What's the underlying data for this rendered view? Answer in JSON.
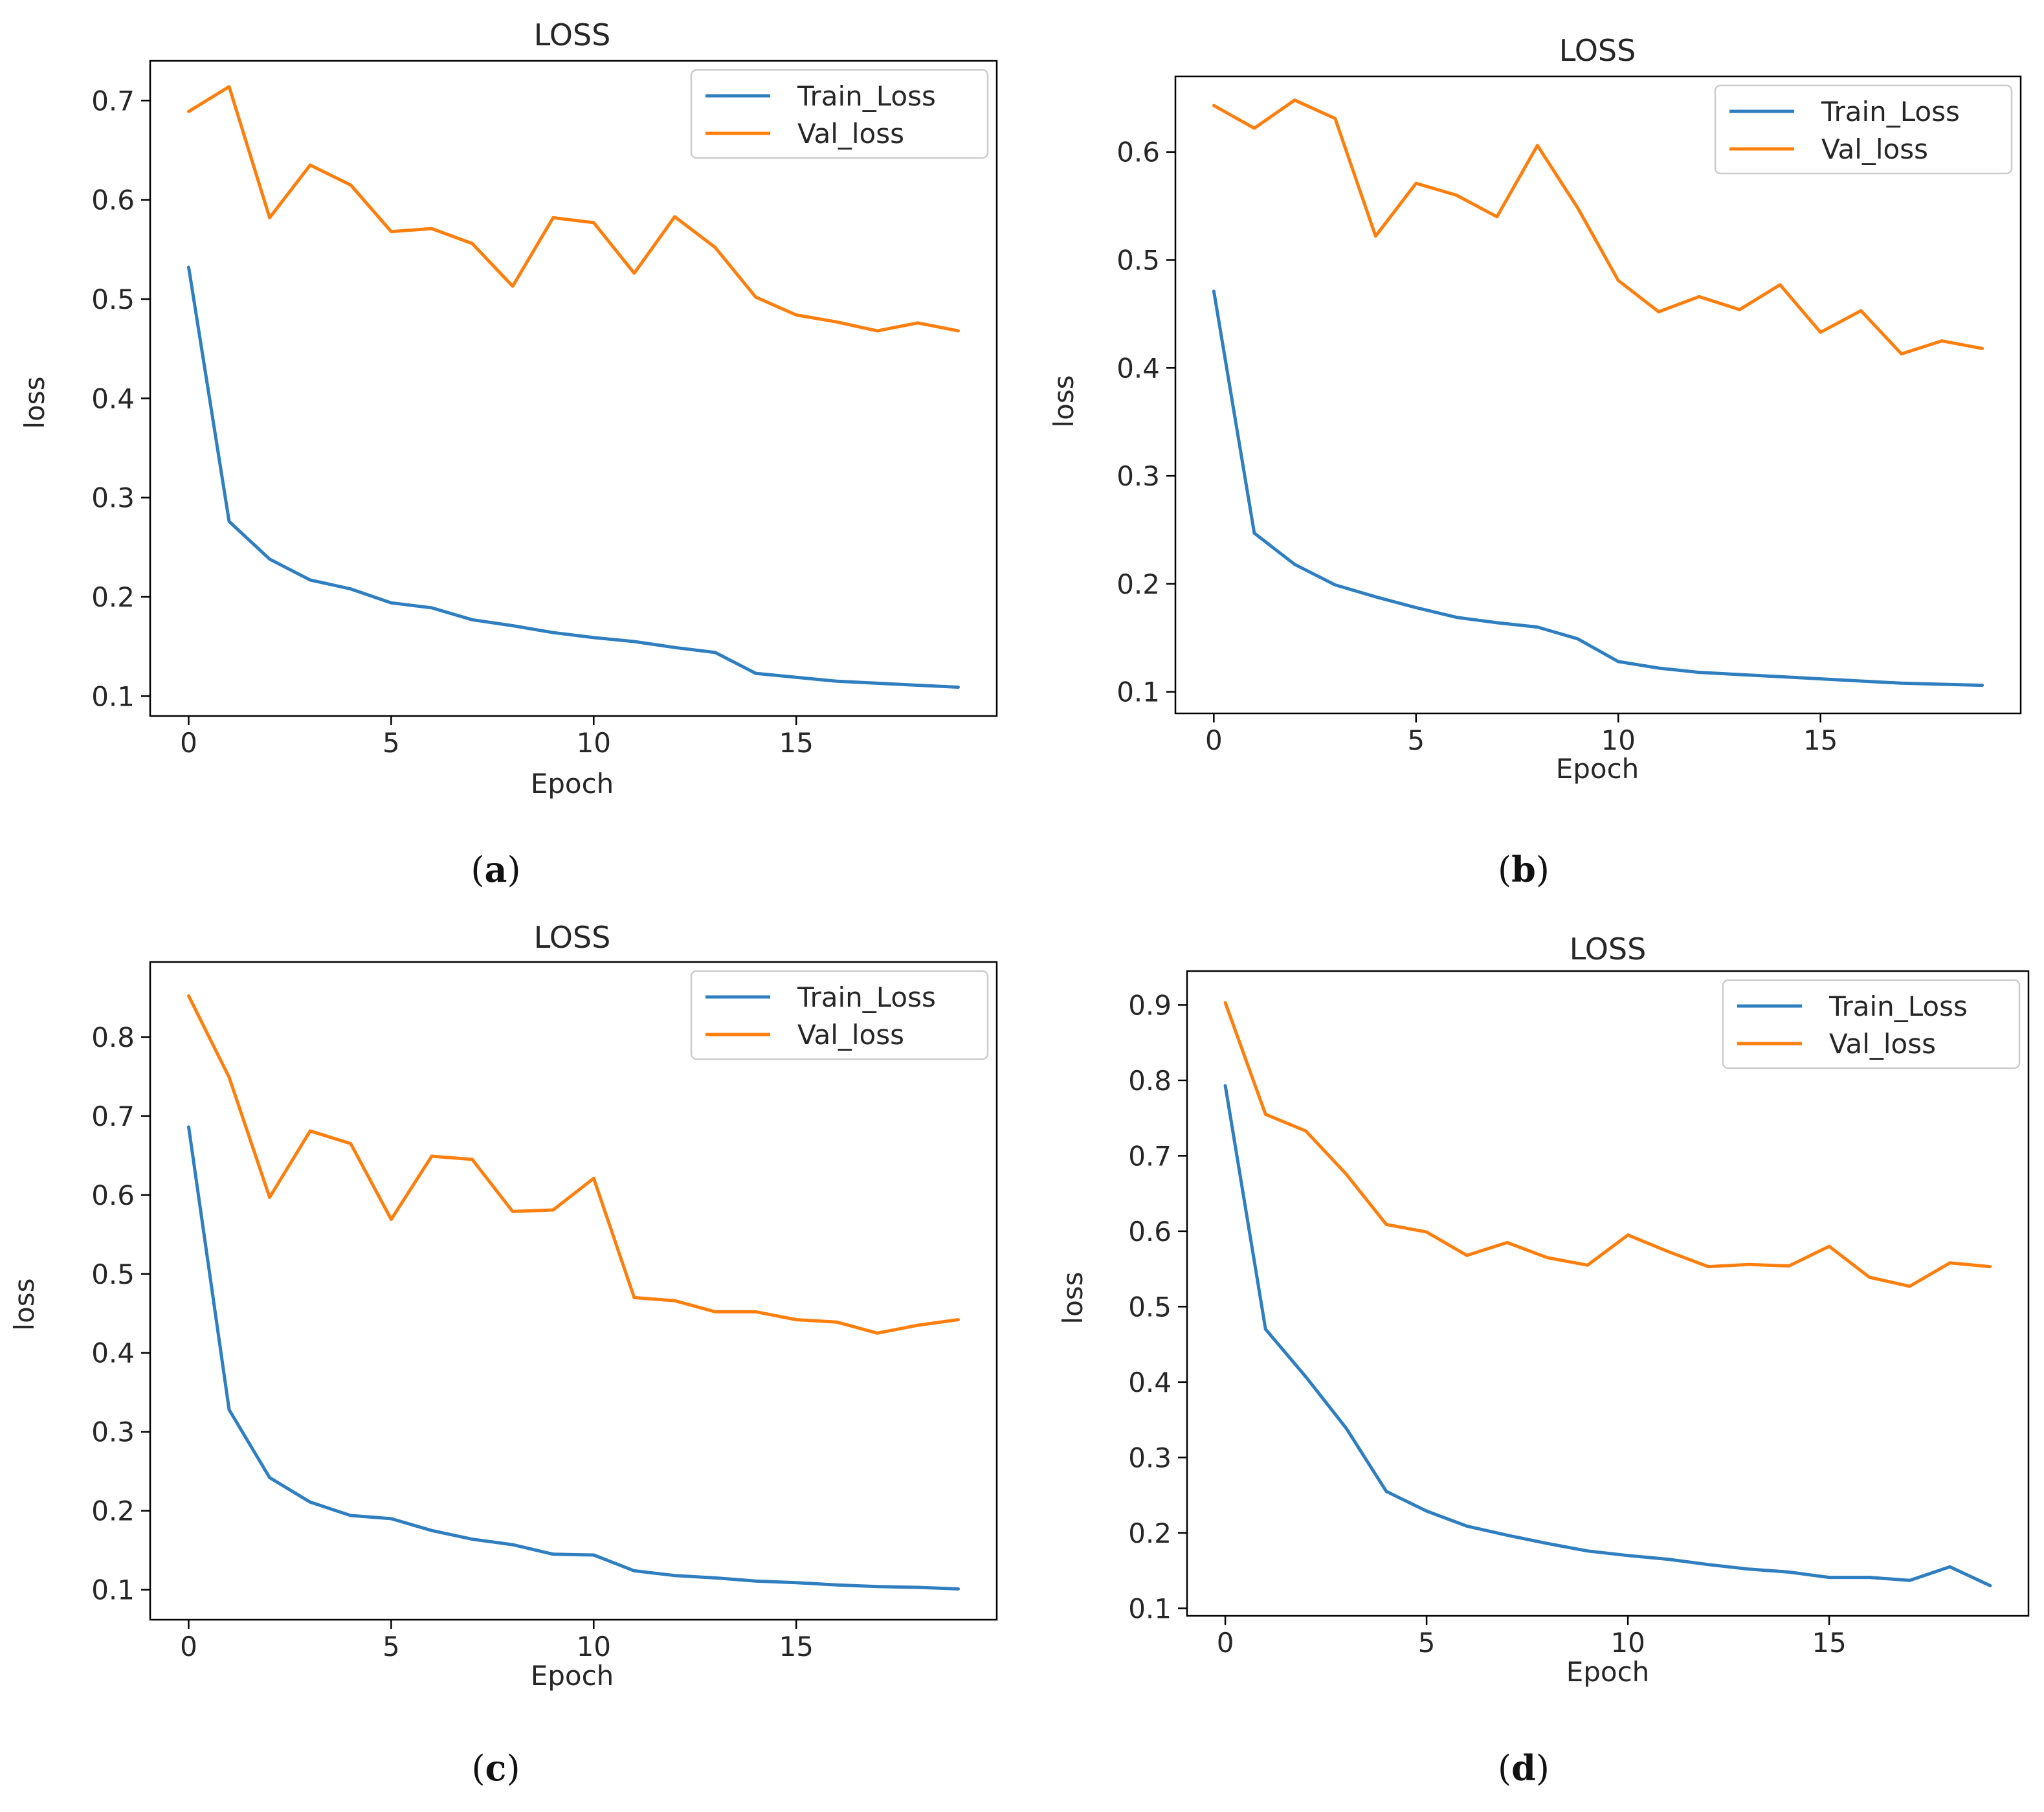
{
  "figure": {
    "panel_labels": [
      {
        "open": "(",
        "letter": "a",
        "close": ")"
      },
      {
        "open": "(",
        "letter": "b",
        "close": ")"
      },
      {
        "open": "(",
        "letter": "c",
        "close": ")"
      },
      {
        "open": "(",
        "letter": "d",
        "close": ")"
      }
    ]
  },
  "colors": {
    "train": "#2e7ec0",
    "val": "#ff7f0e"
  },
  "chart_data": [
    {
      "type": "line",
      "title": "LOSS",
      "xlabel": "Epoch",
      "ylabel": "loss",
      "xlim": [
        -0.95,
        19.95
      ],
      "ylim": [
        0.08,
        0.74
      ],
      "xticks": [
        0,
        5,
        10,
        15
      ],
      "yticks": [
        0.1,
        0.2,
        0.3,
        0.4,
        0.5,
        0.6,
        0.7
      ],
      "legend": "top-right",
      "x": [
        0,
        1,
        2,
        3,
        4,
        5,
        6,
        7,
        8,
        9,
        10,
        11,
        12,
        13,
        14,
        15,
        16,
        17,
        18,
        19
      ],
      "series": [
        {
          "name": "Train_Loss",
          "values": [
            0.532,
            0.276,
            0.238,
            0.217,
            0.208,
            0.194,
            0.189,
            0.177,
            0.171,
            0.164,
            0.159,
            0.155,
            0.149,
            0.144,
            0.123,
            0.119,
            0.115,
            0.113,
            0.111,
            0.109
          ]
        },
        {
          "name": "Val_loss",
          "values": [
            0.689,
            0.714,
            0.582,
            0.635,
            0.615,
            0.568,
            0.571,
            0.556,
            0.513,
            0.582,
            0.577,
            0.526,
            0.583,
            0.552,
            0.502,
            0.484,
            0.477,
            0.468,
            0.476,
            0.468
          ]
        }
      ]
    },
    {
      "type": "line",
      "title": "LOSS",
      "xlabel": "Epoch",
      "ylabel": "loss",
      "xlim": [
        -0.95,
        19.95
      ],
      "ylim": [
        0.08,
        0.67
      ],
      "xticks": [
        0,
        5,
        10,
        15
      ],
      "yticks": [
        0.1,
        0.2,
        0.3,
        0.4,
        0.5,
        0.6
      ],
      "legend": "top-right",
      "x": [
        0,
        1,
        2,
        3,
        4,
        5,
        6,
        7,
        8,
        9,
        10,
        11,
        12,
        13,
        14,
        15,
        16,
        17,
        18,
        19
      ],
      "series": [
        {
          "name": "Train_Loss",
          "values": [
            0.471,
            0.247,
            0.218,
            0.199,
            0.188,
            0.178,
            0.169,
            0.164,
            0.16,
            0.149,
            0.128,
            0.122,
            0.118,
            0.116,
            0.114,
            0.112,
            0.11,
            0.108,
            0.107,
            0.106
          ]
        },
        {
          "name": "Val_loss",
          "values": [
            0.643,
            0.622,
            0.648,
            0.631,
            0.522,
            0.571,
            0.56,
            0.54,
            0.606,
            0.548,
            0.481,
            0.452,
            0.466,
            0.454,
            0.477,
            0.433,
            0.453,
            0.413,
            0.425,
            0.418
          ]
        }
      ]
    },
    {
      "type": "line",
      "title": "LOSS",
      "xlabel": "Epoch",
      "ylabel": "loss",
      "xlim": [
        -0.95,
        19.95
      ],
      "ylim": [
        0.062,
        0.895
      ],
      "xticks": [
        0,
        5,
        10,
        15
      ],
      "yticks": [
        0.1,
        0.2,
        0.3,
        0.4,
        0.5,
        0.6,
        0.7,
        0.8
      ],
      "legend": "top-right",
      "x": [
        0,
        1,
        2,
        3,
        4,
        5,
        6,
        7,
        8,
        9,
        10,
        11,
        12,
        13,
        14,
        15,
        16,
        17,
        18,
        19
      ],
      "series": [
        {
          "name": "Train_Loss",
          "values": [
            0.686,
            0.328,
            0.242,
            0.211,
            0.194,
            0.19,
            0.175,
            0.164,
            0.157,
            0.145,
            0.144,
            0.124,
            0.118,
            0.115,
            0.111,
            0.109,
            0.106,
            0.104,
            0.103,
            0.101
          ]
        },
        {
          "name": "Val_loss",
          "values": [
            0.852,
            0.749,
            0.597,
            0.681,
            0.665,
            0.569,
            0.649,
            0.645,
            0.579,
            0.581,
            0.621,
            0.47,
            0.466,
            0.452,
            0.452,
            0.442,
            0.439,
            0.425,
            0.435,
            0.442
          ]
        }
      ]
    },
    {
      "type": "line",
      "title": "LOSS",
      "xlabel": "Epoch",
      "ylabel": "loss",
      "xlim": [
        -0.95,
        19.95
      ],
      "ylim": [
        0.09,
        0.945
      ],
      "xticks": [
        0,
        5,
        10,
        15
      ],
      "yticks": [
        0.1,
        0.2,
        0.3,
        0.4,
        0.5,
        0.6,
        0.7,
        0.8,
        0.9
      ],
      "legend": "top-right",
      "x": [
        0,
        1,
        2,
        3,
        4,
        5,
        6,
        7,
        8,
        9,
        10,
        11,
        12,
        13,
        14,
        15,
        16,
        17,
        18,
        19
      ],
      "series": [
        {
          "name": "Train_Loss",
          "values": [
            0.793,
            0.47,
            0.407,
            0.339,
            0.255,
            0.229,
            0.209,
            0.197,
            0.186,
            0.176,
            0.17,
            0.165,
            0.158,
            0.152,
            0.148,
            0.141,
            0.141,
            0.137,
            0.155,
            0.13
          ]
        },
        {
          "name": "Val_loss",
          "values": [
            0.903,
            0.755,
            0.733,
            0.676,
            0.609,
            0.599,
            0.568,
            0.585,
            0.565,
            0.555,
            0.595,
            0.573,
            0.553,
            0.556,
            0.554,
            0.58,
            0.539,
            0.527,
            0.558,
            0.553
          ]
        }
      ]
    }
  ]
}
